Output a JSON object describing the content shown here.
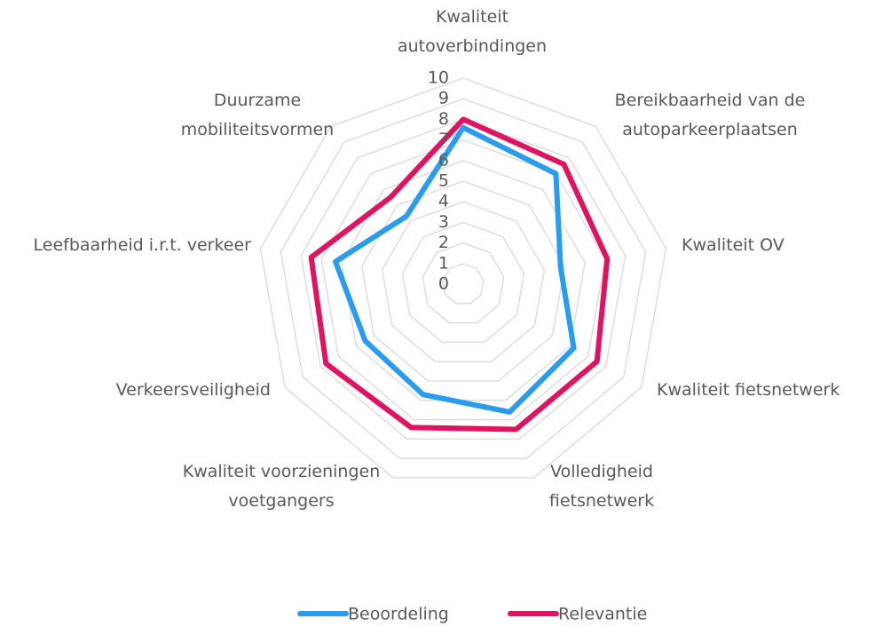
{
  "chart_data": {
    "type": "radar",
    "categories": [
      "Kwaliteit\nautoverbindingen",
      "Bereikbaarheid van de\nautoparkeerplaatsen",
      "Kwaliteit OV",
      "Kwaliteit fietsnetwerk",
      "Volledigheid\nfietsnetwerk",
      "Kwaliteit voorzieningen\nvoetgangers",
      "Verkeersveiligheid",
      "Leefbaarheid i.r.t. verkeer",
      "Duurzame\nmobiliteitsvormen"
    ],
    "series": [
      {
        "name": "Beoordeling",
        "color": "#2a9cf0",
        "values": [
          7.6,
          7.0,
          4.8,
          6.2,
          6.6,
          5.7,
          5.5,
          6.3,
          4.3
        ]
      },
      {
        "name": "Relevantie",
        "color": "#e1125f",
        "values": [
          8.0,
          7.6,
          7.1,
          7.5,
          7.5,
          7.4,
          7.7,
          7.5,
          5.5
        ]
      }
    ],
    "ylim": [
      0,
      10
    ],
    "yticks": [
      0,
      1,
      2,
      3,
      4,
      5,
      6,
      7,
      8,
      9,
      10
    ],
    "grid": true,
    "legend": "bottom"
  }
}
